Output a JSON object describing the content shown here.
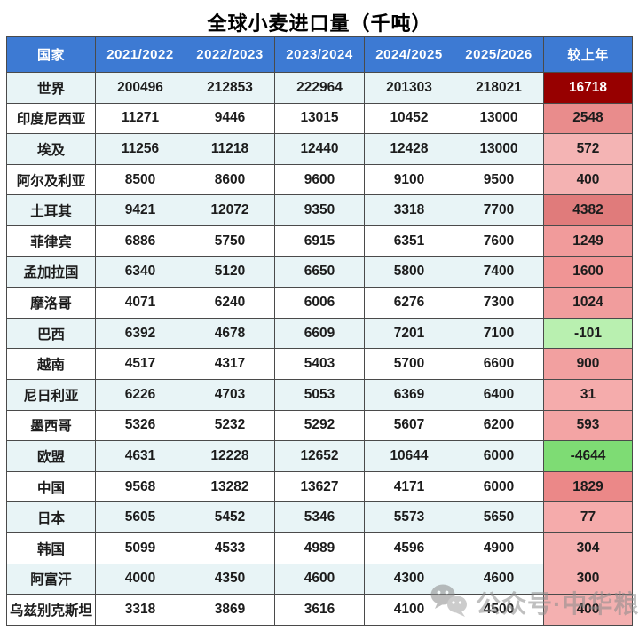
{
  "title": "全球小麦进口量（千吨）",
  "colors": {
    "header_bg": "#3d7ad3",
    "header_fg": "#ffffff",
    "row_alt_bg": "#e8f4f6",
    "row_bg": "#ffffff",
    "border": "#4a4a4a",
    "world_delta_bg": "#970000",
    "world_delta_fg": "#ffffff"
  },
  "watermark": {
    "icon": "wechat-icon",
    "text": "公众号·中华粮网"
  },
  "chart_data": {
    "type": "table",
    "title": "全球小麦进口量（千吨）",
    "columns": [
      "国家",
      "2021/2022",
      "2022/2023",
      "2023/2024",
      "2024/2025",
      "2025/2026",
      "较上年"
    ],
    "rows": [
      {
        "country": "世界",
        "values": [
          "200496",
          "212853",
          "222964",
          "201303",
          "218021"
        ],
        "delta": "16718",
        "delta_bg": "#970000",
        "delta_fg": "#ffffff",
        "alt": true
      },
      {
        "country": "印度尼西亚",
        "values": [
          "11271",
          "9446",
          "13015",
          "10452",
          "13000"
        ],
        "delta": "2548",
        "delta_bg": "#e98c8c",
        "delta_fg": "#1c1c1c",
        "alt": false
      },
      {
        "country": "埃及",
        "values": [
          "11256",
          "11218",
          "12440",
          "12428",
          "13000"
        ],
        "delta": "572",
        "delta_bg": "#f4b4b4",
        "delta_fg": "#1c1c1c",
        "alt": true
      },
      {
        "country": "阿尔及利亚",
        "values": [
          "8500",
          "8600",
          "9600",
          "9100",
          "9500"
        ],
        "delta": "400",
        "delta_bg": "#f4b2b2",
        "delta_fg": "#1c1c1c",
        "alt": false
      },
      {
        "country": "土耳其",
        "values": [
          "9421",
          "12072",
          "9350",
          "3318",
          "7700"
        ],
        "delta": "4382",
        "delta_bg": "#e07b7b",
        "delta_fg": "#1c1c1c",
        "alt": true
      },
      {
        "country": "菲律宾",
        "values": [
          "6886",
          "5750",
          "6915",
          "6351",
          "7600"
        ],
        "delta": "1249",
        "delta_bg": "#f19b9b",
        "delta_fg": "#1c1c1c",
        "alt": false
      },
      {
        "country": "孟加拉国",
        "values": [
          "6340",
          "5120",
          "6650",
          "5800",
          "7400"
        ],
        "delta": "1600",
        "delta_bg": "#f09595",
        "delta_fg": "#1c1c1c",
        "alt": true
      },
      {
        "country": "摩洛哥",
        "values": [
          "4071",
          "6240",
          "6006",
          "6276",
          "7300"
        ],
        "delta": "1024",
        "delta_bg": "#f19d9d",
        "delta_fg": "#1c1c1c",
        "alt": false
      },
      {
        "country": "巴西",
        "values": [
          "6392",
          "4678",
          "6609",
          "7201",
          "7100"
        ],
        "delta": "-101",
        "delta_bg": "#b9f0b0",
        "delta_fg": "#1c1c1c",
        "alt": true
      },
      {
        "country": "越南",
        "values": [
          "4517",
          "4317",
          "5403",
          "5700",
          "6600"
        ],
        "delta": "900",
        "delta_bg": "#f2a0a0",
        "delta_fg": "#1c1c1c",
        "alt": false
      },
      {
        "country": "尼日利亚",
        "values": [
          "6226",
          "4703",
          "5053",
          "6369",
          "6400"
        ],
        "delta": "31",
        "delta_bg": "#f5acac",
        "delta_fg": "#1c1c1c",
        "alt": true
      },
      {
        "country": "墨西哥",
        "values": [
          "5326",
          "5232",
          "5292",
          "5607",
          "6200"
        ],
        "delta": "593",
        "delta_bg": "#f3a4a4",
        "delta_fg": "#1c1c1c",
        "alt": false
      },
      {
        "country": "欧盟",
        "values": [
          "4631",
          "12228",
          "12652",
          "10644",
          "6000"
        ],
        "delta": "-4644",
        "delta_bg": "#7edc74",
        "delta_fg": "#1c1c1c",
        "alt": true
      },
      {
        "country": "中国",
        "values": [
          "9568",
          "13282",
          "13627",
          "4171",
          "6000"
        ],
        "delta": "1829",
        "delta_bg": "#eb8888",
        "delta_fg": "#1c1c1c",
        "alt": false
      },
      {
        "country": "日本",
        "values": [
          "5605",
          "5452",
          "5346",
          "5573",
          "5650"
        ],
        "delta": "77",
        "delta_bg": "#f5abab",
        "delta_fg": "#1c1c1c",
        "alt": true
      },
      {
        "country": "韩国",
        "values": [
          "5099",
          "4533",
          "4989",
          "4596",
          "4900"
        ],
        "delta": "304",
        "delta_bg": "#f4afaf",
        "delta_fg": "#1c1c1c",
        "alt": false
      },
      {
        "country": "阿富汗",
        "values": [
          "4000",
          "4350",
          "4600",
          "4300",
          "4600"
        ],
        "delta": "300",
        "delta_bg": "#f4afaf",
        "delta_fg": "#1c1c1c",
        "alt": true
      },
      {
        "country": "乌兹别克斯坦",
        "values": [
          "3318",
          "3869",
          "3616",
          "4100",
          "4500"
        ],
        "delta": "400",
        "delta_bg": "#f4b0b0",
        "delta_fg": "#1c1c1c",
        "alt": false
      }
    ]
  }
}
